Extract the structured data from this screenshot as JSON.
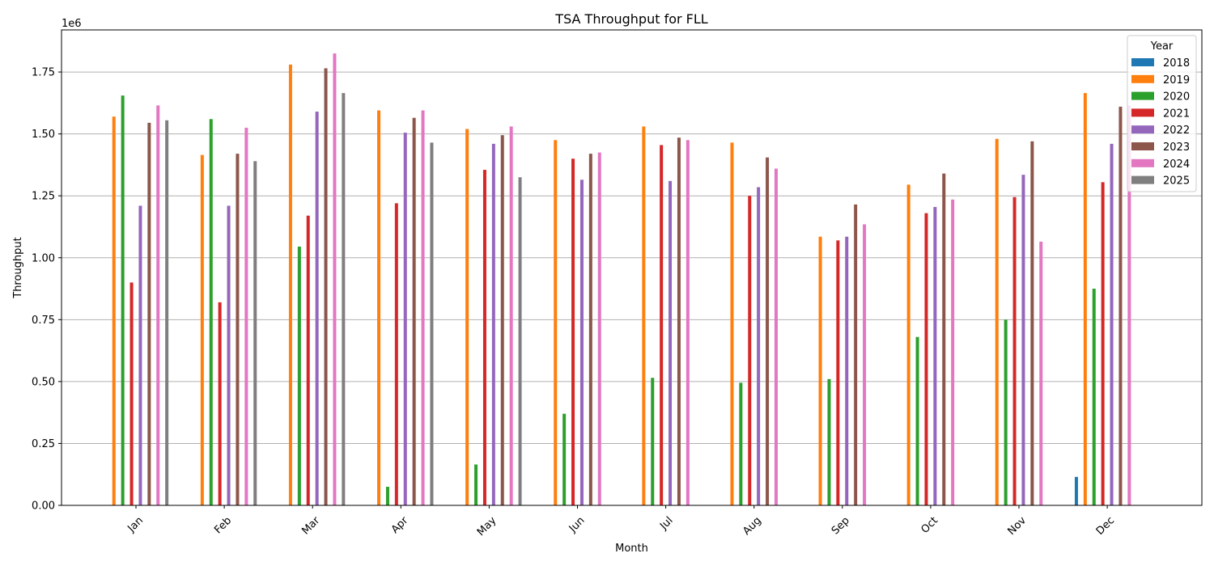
{
  "chart_data": {
    "type": "bar",
    "title": "TSA Throughput for FLL",
    "xlabel": "Month",
    "ylabel": "Throughput",
    "y_multiplier": "1e6",
    "ylim": [
      0,
      1920000
    ],
    "yticks": [
      "0.00",
      "0.25",
      "0.50",
      "0.75",
      "1.00",
      "1.25",
      "1.50",
      "1.75"
    ],
    "grid": "y",
    "legend": {
      "title": "Year",
      "placement": "top-right"
    },
    "categories": [
      "Jan",
      "Feb",
      "Mar",
      "Apr",
      "May",
      "Jun",
      "Jul",
      "Aug",
      "Sep",
      "Oct",
      "Nov",
      "Dec"
    ],
    "series": [
      {
        "name": "2018",
        "color": "#1f77b4",
        "values": [
          null,
          null,
          null,
          null,
          null,
          null,
          null,
          null,
          null,
          null,
          null,
          115000
        ]
      },
      {
        "name": "2019",
        "color": "#ff7f0e",
        "values": [
          1570000,
          1415000,
          1780000,
          1595000,
          1520000,
          1475000,
          1530000,
          1465000,
          1085000,
          1295000,
          1480000,
          1665000
        ]
      },
      {
        "name": "2020",
        "color": "#2ca02c",
        "values": [
          1655000,
          1560000,
          1045000,
          75000,
          165000,
          370000,
          515000,
          495000,
          510000,
          680000,
          750000,
          875000
        ]
      },
      {
        "name": "2021",
        "color": "#d62728",
        "values": [
          900000,
          820000,
          1170000,
          1220000,
          1355000,
          1400000,
          1455000,
          1250000,
          1070000,
          1180000,
          1245000,
          1305000
        ]
      },
      {
        "name": "2022",
        "color": "#9467bd",
        "values": [
          1210000,
          1210000,
          1590000,
          1505000,
          1460000,
          1315000,
          1310000,
          1285000,
          1085000,
          1205000,
          1335000,
          1460000
        ]
      },
      {
        "name": "2023",
        "color": "#8c564b",
        "values": [
          1545000,
          1420000,
          1765000,
          1565000,
          1495000,
          1420000,
          1485000,
          1405000,
          1215000,
          1340000,
          1470000,
          1610000
        ]
      },
      {
        "name": "2024",
        "color": "#e377c2",
        "values": [
          1615000,
          1525000,
          1825000,
          1595000,
          1530000,
          1425000,
          1475000,
          1360000,
          1135000,
          1235000,
          1065000,
          1615000
        ]
      },
      {
        "name": "2025",
        "color": "#7f7f7f",
        "values": [
          1555000,
          1390000,
          1665000,
          1465000,
          1325000,
          null,
          null,
          null,
          null,
          null,
          null,
          null
        ]
      }
    ]
  }
}
